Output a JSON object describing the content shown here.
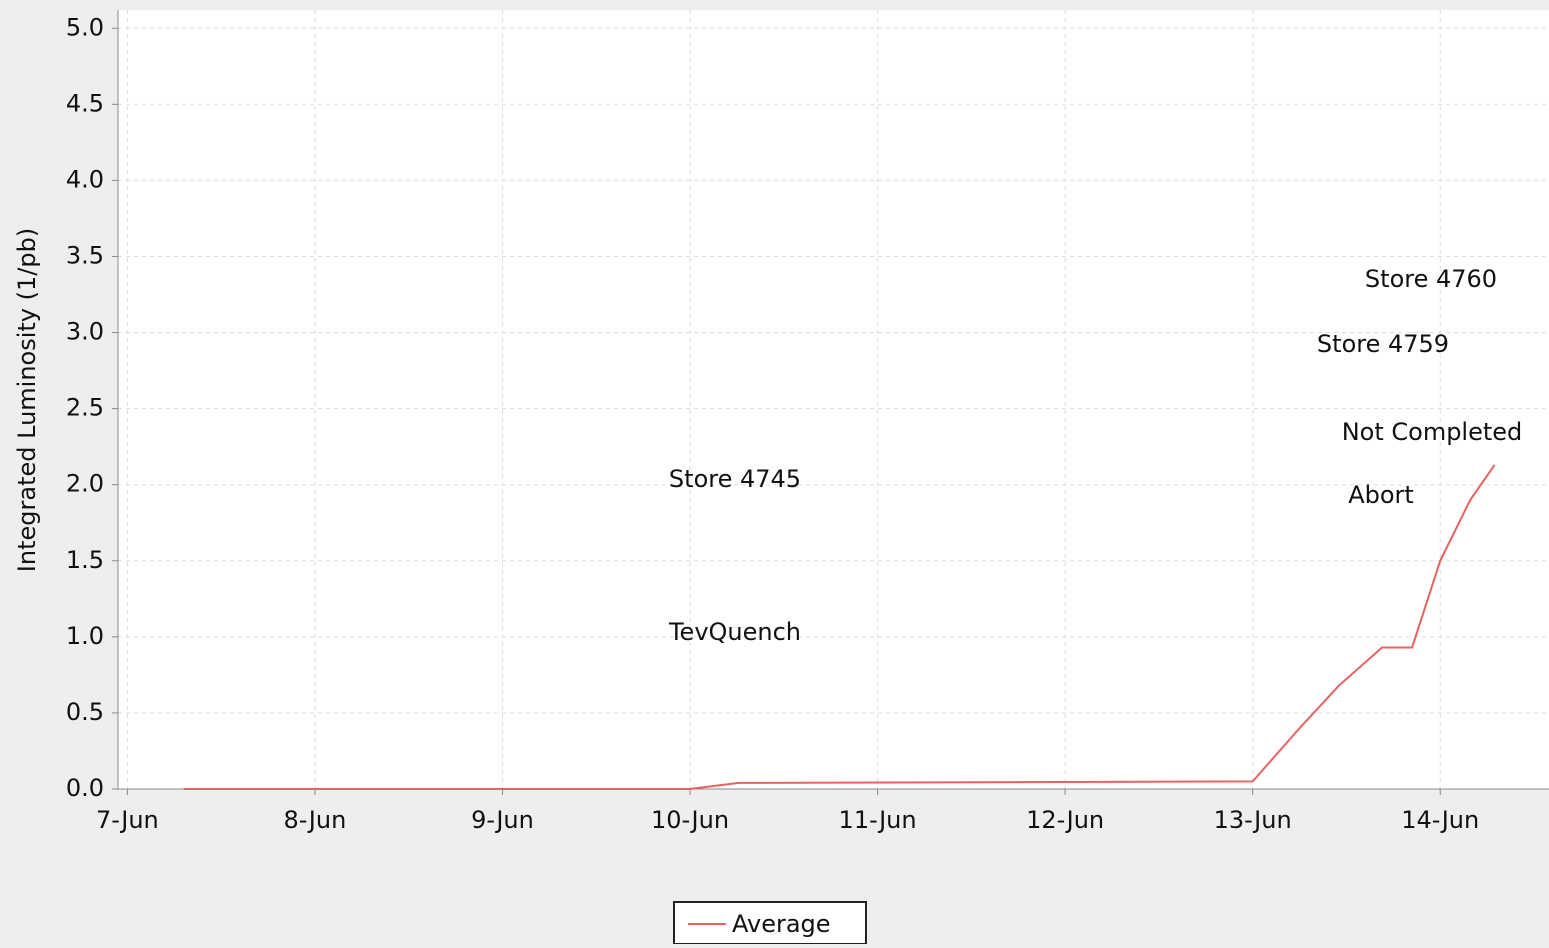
{
  "chart_data": {
    "type": "line",
    "y_label": "Integrated Luminosity (1/pb)",
    "series": [
      {
        "name": "Average",
        "color": "#e8625f",
        "x": [
          7.3,
          9.997,
          10.26,
          13.0,
          13.25,
          13.46,
          13.69,
          13.85,
          14.0,
          14.16,
          14.29
        ],
        "values": [
          0,
          0,
          0.04,
          0.05,
          0.4,
          0.68,
          0.93,
          0.93,
          1.5,
          1.9,
          2.13
        ]
      }
    ],
    "xlim": [
      6.95,
      14.58
    ],
    "xticks": [
      {
        "value": 7,
        "label": "7-Jun"
      },
      {
        "value": 8,
        "label": "8-Jun"
      },
      {
        "value": 9,
        "label": "9-Jun"
      },
      {
        "value": 10,
        "label": "10-Jun"
      },
      {
        "value": 11,
        "label": "11-Jun"
      },
      {
        "value": 12,
        "label": "12-Jun"
      },
      {
        "value": 13,
        "label": "13-Jun"
      },
      {
        "value": 14,
        "label": "14-Jun"
      }
    ],
    "ylim": [
      0,
      5.12
    ],
    "yticks": [
      {
        "value": 0,
        "label": "0.0"
      },
      0.5,
      {
        "value": 1,
        "label": "1.0"
      },
      1.5,
      {
        "value": 2,
        "label": "2.0"
      },
      2.5,
      {
        "value": 3,
        "label": "3.0"
      },
      3.5,
      {
        "value": 4,
        "label": "4.0"
      },
      4.5,
      {
        "value": 5,
        "label": "5.0"
      }
    ],
    "grid": true,
    "annotations": [
      "Store 4745",
      "TevQuench",
      "Store 4760",
      "Store 4759",
      "Not Completed",
      "Abort"
    ]
  }
}
